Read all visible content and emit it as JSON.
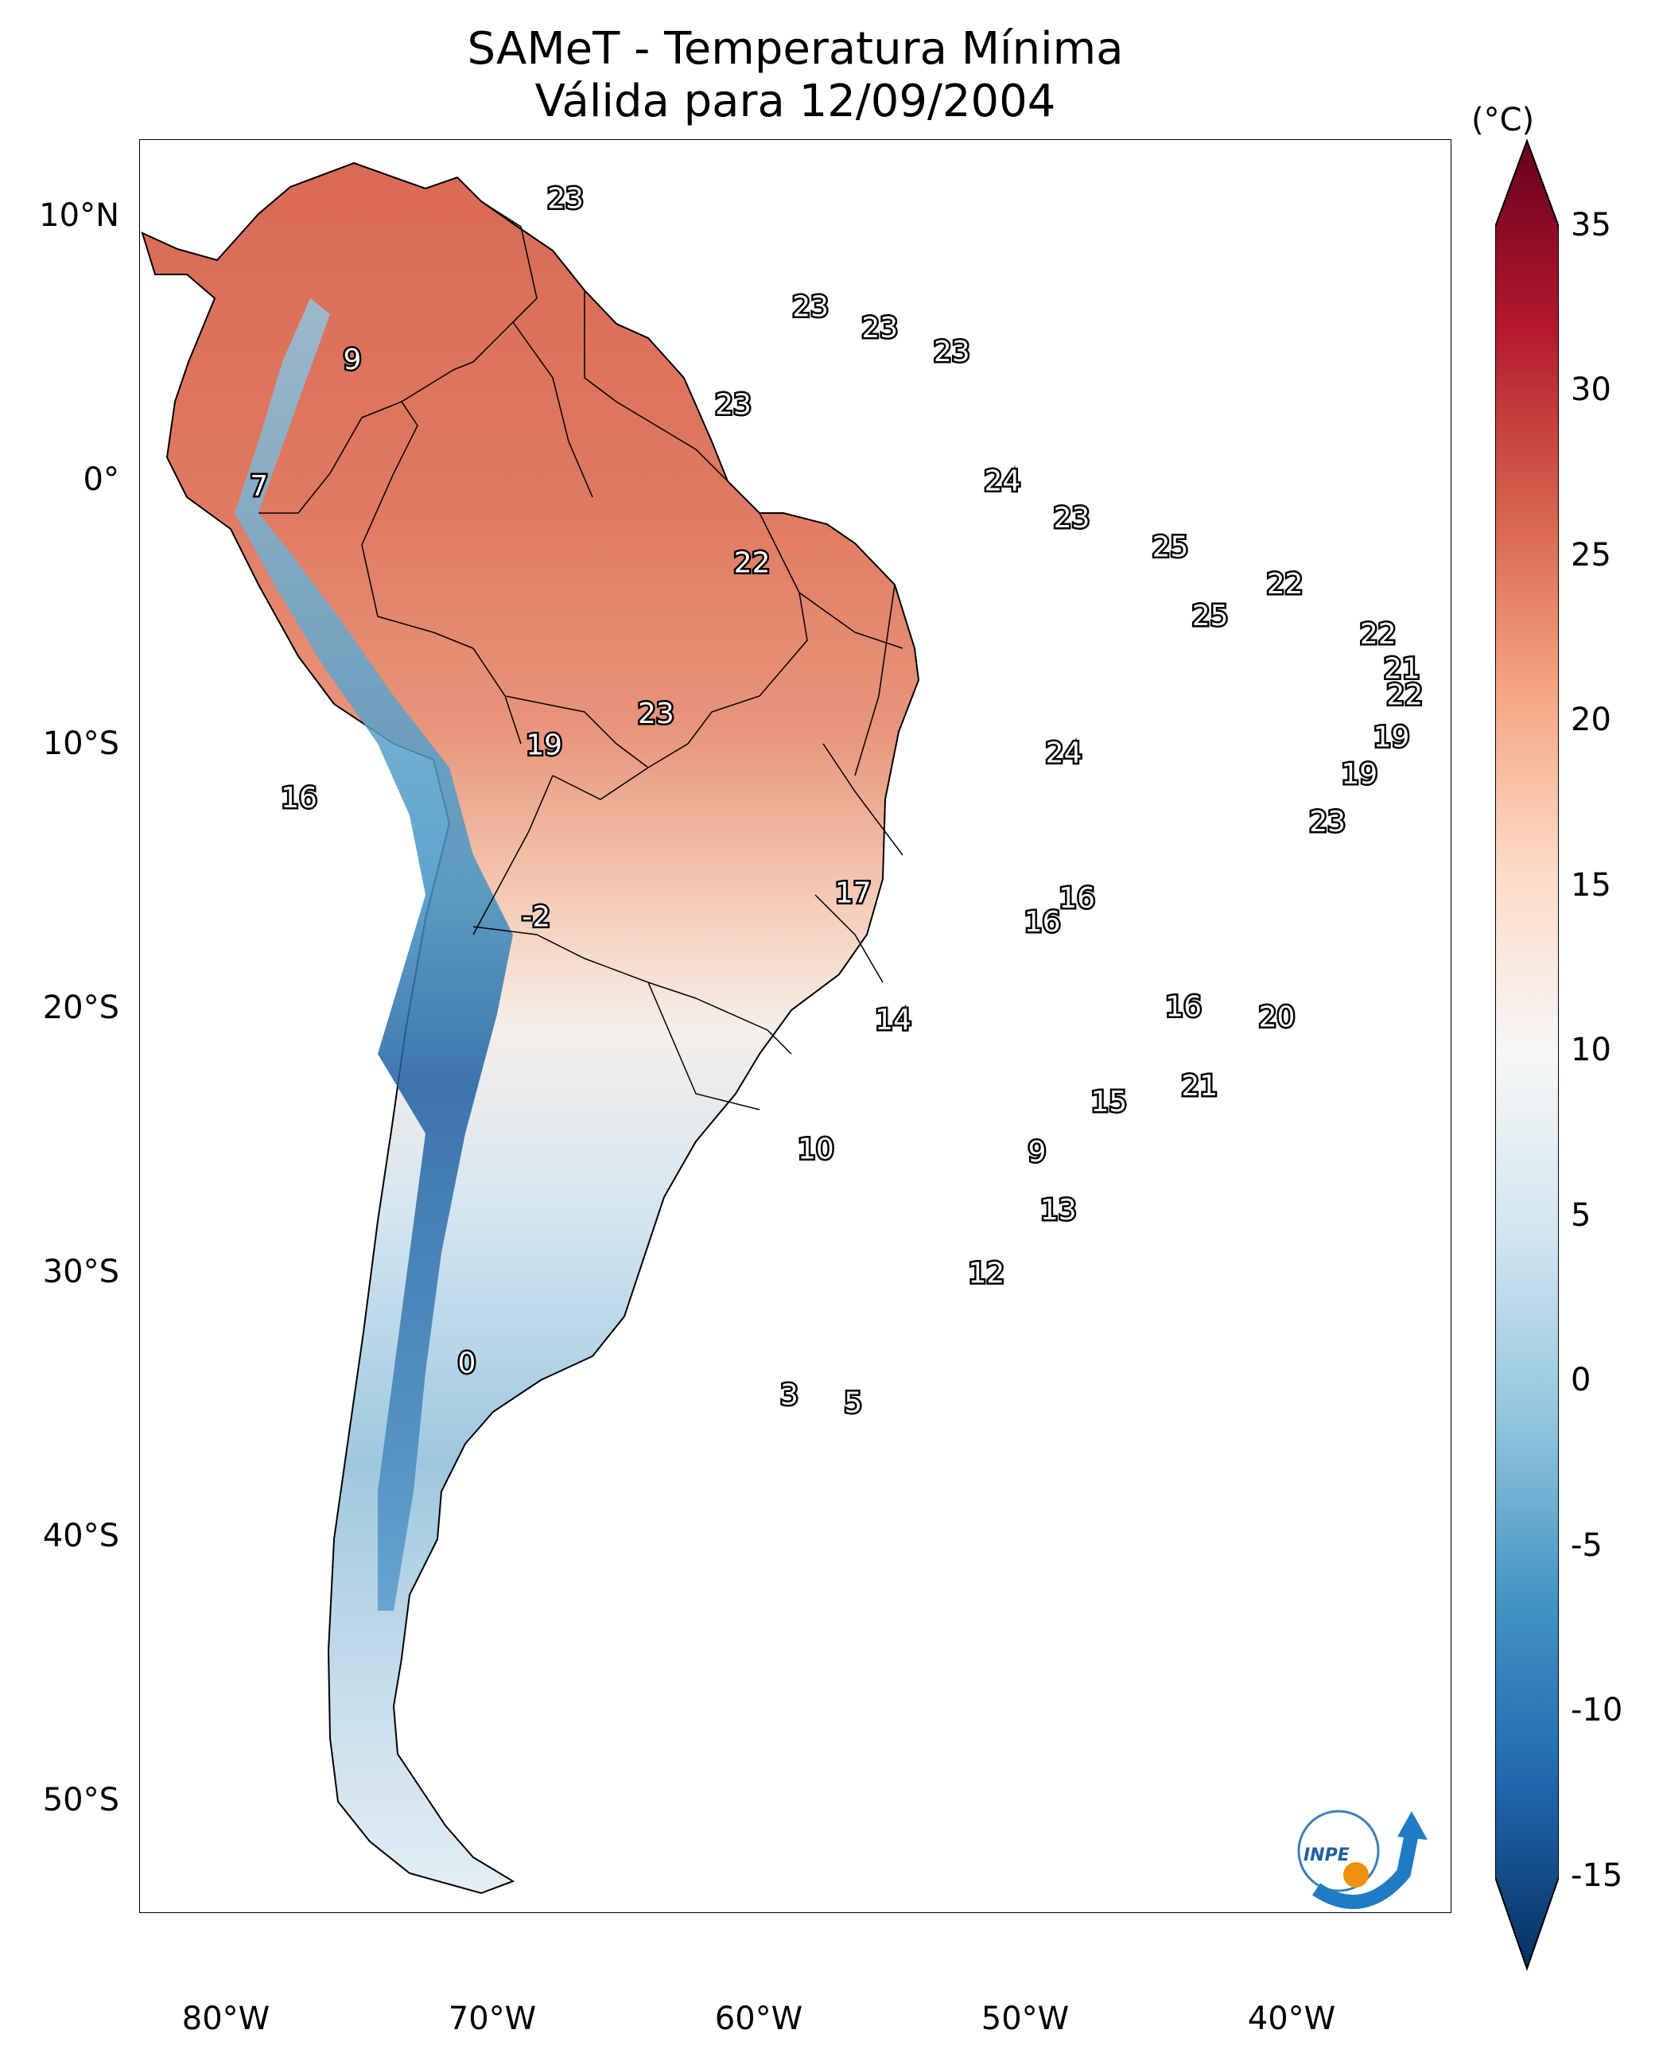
{
  "title": {
    "line1": "SAMeT - Temperatura Mínima",
    "line2": "Válida para 12/09/2004"
  },
  "axes": {
    "lat_ticks": [
      "10°N",
      "0°",
      "10°S",
      "20°S",
      "30°S",
      "40°S",
      "50°S"
    ],
    "lon_ticks": [
      "80°W",
      "70°W",
      "60°W",
      "50°W",
      "40°W"
    ]
  },
  "colorbar": {
    "unit": "(°C)",
    "ticks": [
      "35",
      "30",
      "25",
      "20",
      "15",
      "10",
      "5",
      "0",
      "-5",
      "-10",
      "-15"
    ],
    "colors": [
      "#67001f",
      "#b2182b",
      "#d6604d",
      "#f4a582",
      "#fddbc7",
      "#f7f7f7",
      "#d1e5f0",
      "#92c5de",
      "#4393c3",
      "#2166ac",
      "#053061"
    ]
  },
  "logo_text": "INPE",
  "station_labels": [
    {
      "text": "23",
      "lon": -67.0,
      "lat": 10.7
    },
    {
      "text": "9",
      "lon": -75.0,
      "lat": 4.6
    },
    {
      "text": "7",
      "lon": -78.5,
      "lat": -0.2
    },
    {
      "text": "23",
      "lon": -57.8,
      "lat": 6.6
    },
    {
      "text": "23",
      "lon": -55.2,
      "lat": 5.8
    },
    {
      "text": "23",
      "lon": -52.5,
      "lat": 4.9
    },
    {
      "text": "23",
      "lon": -60.7,
      "lat": 2.9
    },
    {
      "text": "24",
      "lon": -50.6,
      "lat": 0.0
    },
    {
      "text": "23",
      "lon": -48.0,
      "lat": -1.4
    },
    {
      "text": "25",
      "lon": -44.3,
      "lat": -2.5
    },
    {
      "text": "22",
      "lon": -60.0,
      "lat": -3.1
    },
    {
      "text": "22",
      "lon": -40.0,
      "lat": -3.9
    },
    {
      "text": "25",
      "lon": -42.8,
      "lat": -5.1
    },
    {
      "text": "22",
      "lon": -36.5,
      "lat": -5.8
    },
    {
      "text": "21",
      "lon": -35.6,
      "lat": -7.1
    },
    {
      "text": "22",
      "lon": -35.5,
      "lat": -8.1
    },
    {
      "text": "19",
      "lon": -36.0,
      "lat": -9.7
    },
    {
      "text": "19",
      "lon": -37.2,
      "lat": -11.1
    },
    {
      "text": "23",
      "lon": -63.6,
      "lat": -8.8
    },
    {
      "text": "19",
      "lon": -67.8,
      "lat": -10.0
    },
    {
      "text": "24",
      "lon": -48.3,
      "lat": -10.3
    },
    {
      "text": "16",
      "lon": -77.0,
      "lat": -12.0
    },
    {
      "text": "23",
      "lon": -38.4,
      "lat": -12.9
    },
    {
      "text": "17",
      "lon": -56.2,
      "lat": -15.6
    },
    {
      "text": "16",
      "lon": -47.8,
      "lat": -15.8
    },
    {
      "text": "16",
      "lon": -49.1,
      "lat": -16.7
    },
    {
      "text": "-2",
      "lon": -68.1,
      "lat": -16.5
    },
    {
      "text": "14",
      "lon": -54.7,
      "lat": -20.4
    },
    {
      "text": "16",
      "lon": -43.8,
      "lat": -19.9
    },
    {
      "text": "20",
      "lon": -40.3,
      "lat": -20.3
    },
    {
      "text": "21",
      "lon": -43.2,
      "lat": -22.9
    },
    {
      "text": "15",
      "lon": -46.6,
      "lat": -23.5
    },
    {
      "text": "10",
      "lon": -57.6,
      "lat": -25.3
    },
    {
      "text": "9",
      "lon": -49.3,
      "lat": -25.4
    },
    {
      "text": "13",
      "lon": -48.5,
      "lat": -27.6
    },
    {
      "text": "12",
      "lon": -51.2,
      "lat": -30.0
    },
    {
      "text": "0",
      "lon": -70.7,
      "lat": -33.4
    },
    {
      "text": "3",
      "lon": -58.6,
      "lat": -34.6
    },
    {
      "text": "5",
      "lon": -56.2,
      "lat": -34.9
    }
  ]
}
